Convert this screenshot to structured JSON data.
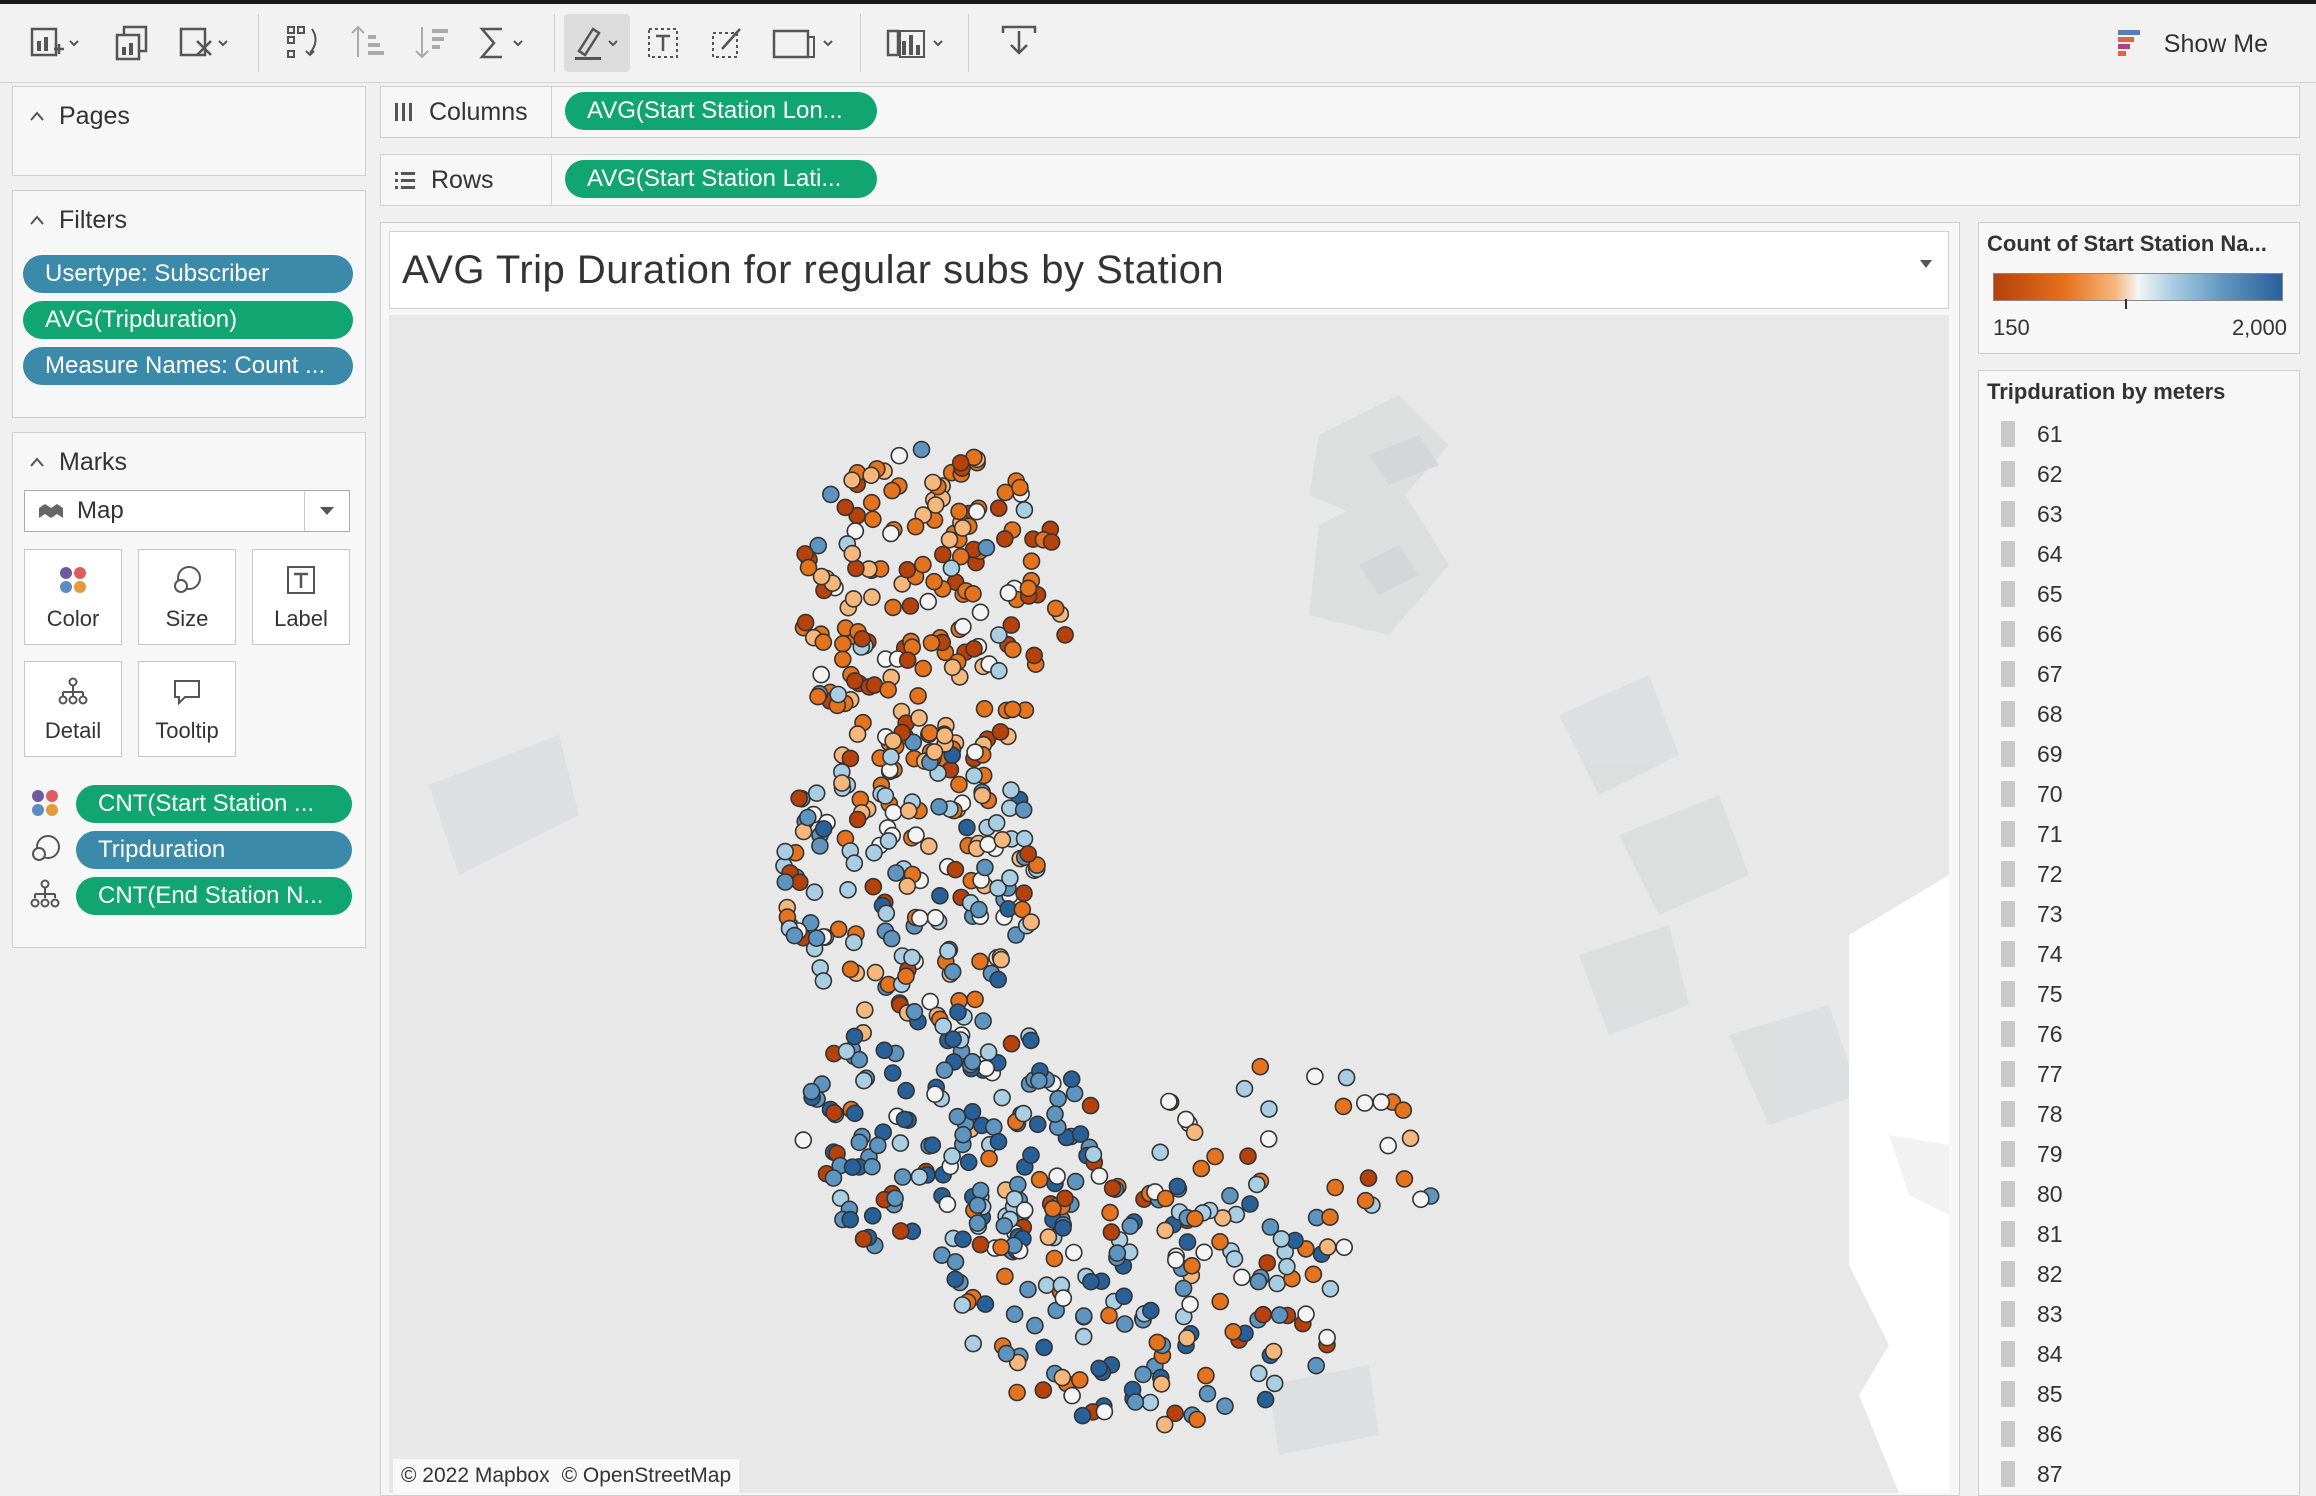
{
  "toolbar": {
    "show_me_label": "Show Me"
  },
  "left": {
    "pages": {
      "label": "Pages"
    },
    "filters": {
      "label": "Filters",
      "pills": [
        {
          "label": "Usertype: Subscriber",
          "kind": "dimension"
        },
        {
          "label": "AVG(Tripduration)",
          "kind": "measure"
        },
        {
          "label": "Measure Names: Count ...",
          "kind": "dimension"
        }
      ]
    },
    "marks": {
      "label": "Marks",
      "type_value": "Map",
      "buttons": [
        "Color",
        "Size",
        "Label",
        "Detail",
        "Tooltip"
      ],
      "fields": [
        {
          "label": "CNT(Start Station ...",
          "role": "color",
          "kind": "measure"
        },
        {
          "label": "Tripduration",
          "role": "size",
          "kind": "dimension"
        },
        {
          "label": "CNT(End Station N...",
          "role": "detail",
          "kind": "measure"
        }
      ]
    }
  },
  "shelves": {
    "columns": {
      "label": "Columns",
      "pill": "AVG(Start Station Lon..."
    },
    "rows": {
      "label": "Rows",
      "pill": "AVG(Start Station Lati..."
    }
  },
  "view": {
    "title": "AVG Trip Duration for regular subs by Station",
    "credit_mapbox": "© 2022 Mapbox",
    "credit_osm": "© OpenStreetMap"
  },
  "legends": {
    "color": {
      "title": "Count of Start Station Na...",
      "min_label": "150",
      "max_label": "2,000",
      "colors": [
        "#b6410b",
        "#e5721d",
        "#f6b77c",
        "#f4f4f4",
        "#a9cde3",
        "#5d95c0",
        "#28609a"
      ]
    },
    "size": {
      "title": "Tripduration by meters",
      "items": [
        "61",
        "62",
        "63",
        "64",
        "65",
        "66",
        "67",
        "68",
        "69",
        "70",
        "71",
        "72",
        "73",
        "74",
        "75",
        "76",
        "77",
        "78",
        "79",
        "80",
        "81",
        "82",
        "83",
        "84",
        "85",
        "86",
        "87"
      ]
    }
  },
  "colors": {
    "measure_pill": "#11a571",
    "dimension_pill": "#3b8aaa"
  }
}
